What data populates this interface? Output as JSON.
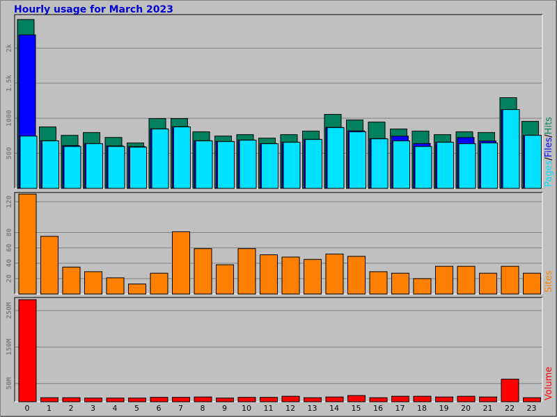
{
  "title": "Hourly usage for March 2023",
  "categories": [
    "0",
    "1",
    "2",
    "3",
    "4",
    "5",
    "6",
    "7",
    "8",
    "9",
    "10",
    "11",
    "12",
    "13",
    "14",
    "15",
    "16",
    "17",
    "18",
    "19",
    "20",
    "21",
    "22",
    "23"
  ],
  "separator": "/",
  "chart_data": [
    {
      "type": "bar",
      "series": [
        {
          "name": "Hits",
          "color": "#00805c",
          "values": [
            2408,
            876,
            756,
            796,
            726,
            647,
            995,
            995,
            806,
            746,
            766,
            716,
            766,
            816,
            1055,
            975,
            945,
            846,
            816,
            766,
            806,
            796,
            1294,
            955
          ]
        },
        {
          "name": "Files",
          "color": "#0000ff",
          "values": [
            2189,
            680,
            610,
            640,
            605,
            595,
            850,
            880,
            680,
            670,
            690,
            640,
            660,
            700,
            870,
            820,
            710,
            745,
            640,
            660,
            725,
            675,
            1124,
            758
          ]
        },
        {
          "name": "Pages",
          "color": "#00e0ff",
          "values": [
            745,
            677,
            597,
            637,
            597,
            587,
            846,
            876,
            677,
            667,
            687,
            637,
            657,
            697,
            866,
            806,
            706,
            677,
            597,
            657,
            637,
            647,
            1124,
            756
          ]
        }
      ],
      "legend_order": [
        2,
        1,
        0
      ],
      "ylim": [
        0,
        2478
      ],
      "yticks": [
        {
          "value": 500,
          "label": "500"
        },
        {
          "value": 1000,
          "label": "1000"
        },
        {
          "value": 1500,
          "label": "1.5k"
        },
        {
          "value": 2000,
          "label": "2k"
        }
      ],
      "grid": true
    },
    {
      "type": "bar",
      "series": [
        {
          "name": "Sites",
          "color": "#ff8000",
          "values": [
            130,
            75,
            35,
            29,
            21,
            13,
            27,
            81,
            59,
            38,
            59,
            51,
            48,
            45,
            52,
            49,
            29,
            27,
            20,
            36,
            36,
            27,
            36,
            27
          ]
        }
      ],
      "ylim": [
        0,
        132
      ],
      "yticks": [
        20,
        40,
        60,
        80,
        120
      ],
      "grid": true
    },
    {
      "type": "bar",
      "series": [
        {
          "name": "Volume",
          "color": "#ff0000",
          "values": [
            280,
            11,
            11,
            10,
            10,
            10,
            12,
            12,
            13,
            10,
            12,
            12,
            15,
            11,
            13,
            17,
            11,
            15,
            15,
            13,
            15,
            13,
            62,
            11
          ]
        }
      ],
      "ylim": [
        0,
        286
      ],
      "yticks": [
        {
          "value": 50,
          "label": "50M"
        },
        {
          "value": 150,
          "label": "150M"
        },
        {
          "value": 250,
          "label": "250M"
        }
      ],
      "grid": true
    }
  ]
}
